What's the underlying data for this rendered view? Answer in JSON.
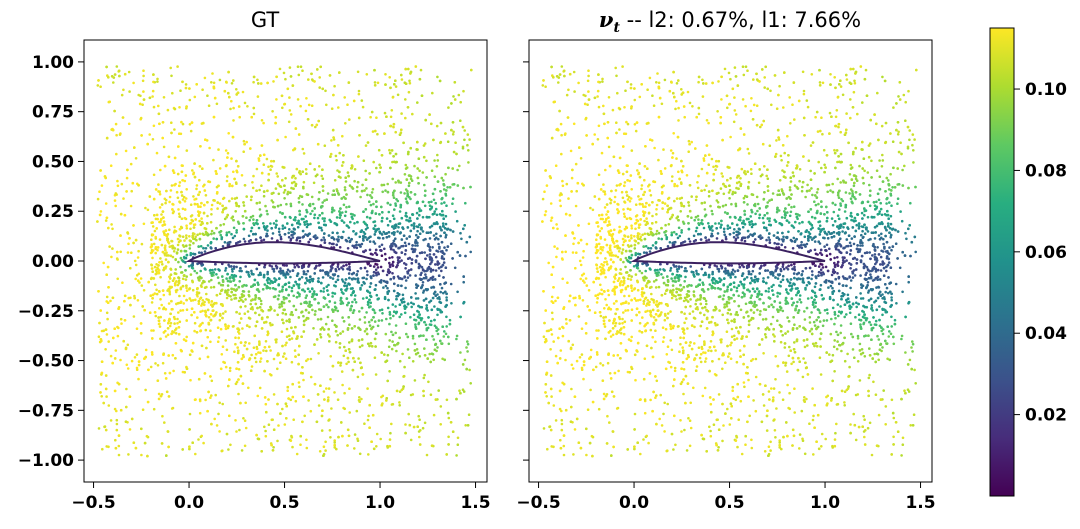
{
  "chart_data": [
    {
      "type": "scatter",
      "title": "GT",
      "x_ticks": [
        "−0.5",
        "0.0",
        "0.5",
        "1.0",
        "1.5"
      ],
      "y_ticks": [
        "1.00",
        "0.75",
        "0.50",
        "0.25",
        "0.00",
        "−0.25",
        "−0.50",
        "−0.75",
        "−1.00"
      ],
      "xlim": [
        -0.55,
        1.56
      ],
      "ylim": [
        -1.11,
        1.11
      ],
      "airfoil": {
        "leading_edge": [
          0.0,
          0.0
        ],
        "trailing_edge": [
          1.0,
          0.0
        ],
        "max_camber_y": 0.09,
        "max_camber_x": 0.5
      },
      "wake_low_value_region": {
        "x": [
          1.0,
          1.5
        ],
        "y": [
          -0.15,
          0.1
        ]
      }
    },
    {
      "type": "scatter",
      "title_symbol": "ν",
      "title_subscript": "t",
      "title_rest": " --  l2: 0.67%, l1: 7.66%",
      "x_ticks": [
        "−0.5",
        "0.0",
        "0.5",
        "1.0",
        "1.5"
      ],
      "show_y_tick_labels": false,
      "xlim": [
        -0.55,
        1.56
      ],
      "ylim": [
        -1.11,
        1.11
      ]
    },
    {
      "type": "colorbar",
      "colormap": "viridis",
      "range": [
        0.0,
        0.115
      ],
      "ticks": [
        "0.10",
        "0.08",
        "0.06",
        "0.04",
        "0.02"
      ],
      "tick_values": [
        0.1,
        0.08,
        0.06,
        0.04,
        0.02
      ]
    }
  ]
}
